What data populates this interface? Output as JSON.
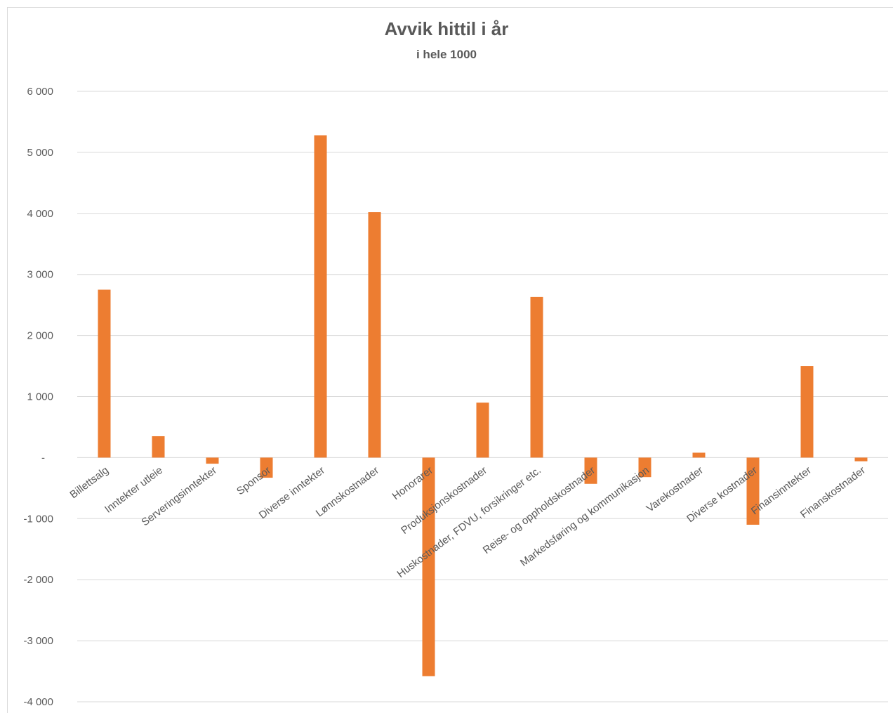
{
  "chart_data": {
    "type": "bar",
    "title": "Avvik hittil i år",
    "subtitle": "i hele 1000",
    "categories": [
      "Billettsalg",
      "Inntekter utleie",
      "Serveringsinntekter",
      "Sponsor",
      "Diverse inntekter",
      "Lønnskostnader",
      "Honorarer",
      "Produksjonskostnader",
      "Huskostnader, FDVU, forsikringer etc.",
      "Reise- og oppholdskostnader",
      "Markedsføring og kommunikasjon",
      "Varekostnader",
      "Diverse kostnader",
      "Finansinntekter",
      "Finanskostnader"
    ],
    "values": [
      2750,
      350,
      -100,
      -330,
      5280,
      4020,
      -3580,
      900,
      2630,
      -430,
      -320,
      80,
      -1100,
      1500,
      -60
    ],
    "ylim": [
      -4000,
      6000
    ],
    "yticks": [
      {
        "value": 6000,
        "label": "6 000"
      },
      {
        "value": 5000,
        "label": "5 000"
      },
      {
        "value": 4000,
        "label": "4 000"
      },
      {
        "value": 3000,
        "label": "3 000"
      },
      {
        "value": 2000,
        "label": "2 000"
      },
      {
        "value": 1000,
        "label": "1 000"
      },
      {
        "value": 0,
        "label": "-"
      },
      {
        "value": -1000,
        "label": "-1 000"
      },
      {
        "value": -2000,
        "label": "-2 000"
      },
      {
        "value": -3000,
        "label": "-3 000"
      },
      {
        "value": -4000,
        "label": "-4 000"
      }
    ],
    "grid": true,
    "legend": "none",
    "bar_color": "#ED7D31",
    "grid_color": "#d9d9d9",
    "text_color": "#595959"
  }
}
